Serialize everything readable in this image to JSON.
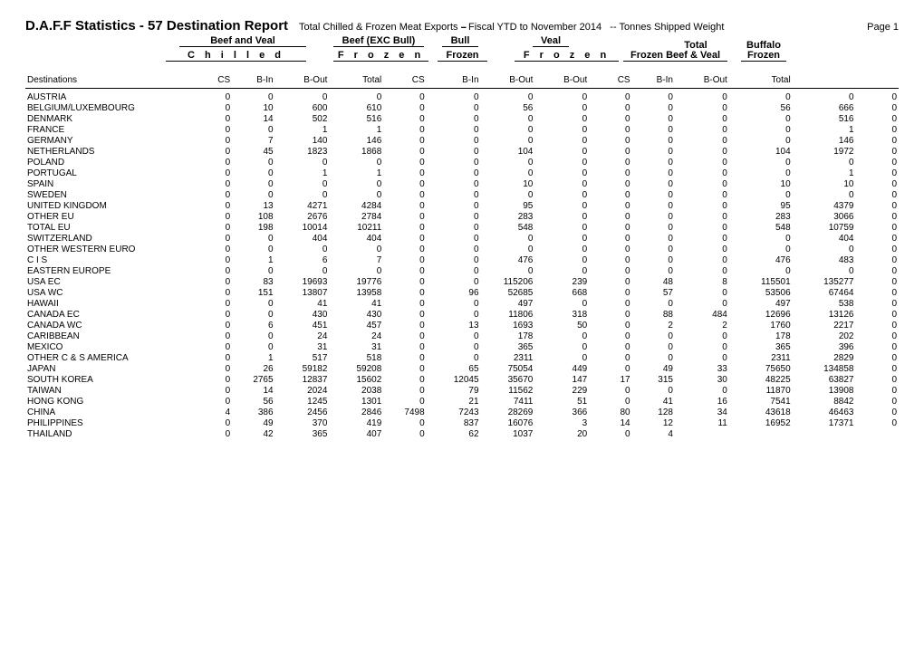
{
  "header": {
    "title": "D.A.F.F Statistics - 57 Destination Report",
    "subtitle_a": "Total Chilled & Frozen Meat Exports",
    "subtitle_b": "Fiscal YTD to November 2014",
    "subtitle_c": "Tonnes Shipped Weight",
    "page": "Page 1",
    "grp_beef_veal": "Beef and Veal",
    "grp_beef_exc": "Beef (EXC Bull)",
    "grp_bull": "Bull",
    "grp_veal": "Veal",
    "grp_total": "Total",
    "grp_buffalo": "Buffalo",
    "sub_chilled": "C h i l l e d",
    "sub_frozen": "F r o z e n",
    "sub_frozen2": "Frozen",
    "sub_frozen_bv": "Frozen Beef & Veal",
    "dest_label": "Destinations",
    "col_cs": "CS",
    "col_bin": "B-In",
    "col_bout": "B-Out",
    "col_total": "Total"
  },
  "rows": [
    {
      "d": "AUSTRIA",
      "v": [
        0,
        0,
        0,
        0,
        0,
        0,
        0,
        0,
        0,
        0,
        0,
        0,
        0,
        0
      ]
    },
    {
      "d": "BELGIUM/LUXEMBOURG",
      "v": [
        0,
        10,
        600,
        610,
        0,
        0,
        56,
        0,
        0,
        0,
        0,
        56,
        666,
        0
      ]
    },
    {
      "d": "DENMARK",
      "v": [
        0,
        14,
        502,
        516,
        0,
        0,
        0,
        0,
        0,
        0,
        0,
        0,
        516,
        0
      ]
    },
    {
      "d": "FRANCE",
      "v": [
        0,
        0,
        1,
        1,
        0,
        0,
        0,
        0,
        0,
        0,
        0,
        0,
        1,
        0
      ]
    },
    {
      "d": "GERMANY",
      "v": [
        0,
        7,
        140,
        146,
        0,
        0,
        0,
        0,
        0,
        0,
        0,
        0,
        146,
        0
      ]
    },
    {
      "d": "NETHERLANDS",
      "v": [
        0,
        45,
        1823,
        1868,
        0,
        0,
        104,
        0,
        0,
        0,
        0,
        104,
        1972,
        0
      ]
    },
    {
      "d": "POLAND",
      "v": [
        0,
        0,
        0,
        0,
        0,
        0,
        0,
        0,
        0,
        0,
        0,
        0,
        0,
        0
      ]
    },
    {
      "d": "PORTUGAL",
      "v": [
        0,
        0,
        1,
        1,
        0,
        0,
        0,
        0,
        0,
        0,
        0,
        0,
        1,
        0
      ]
    },
    {
      "d": "SPAIN",
      "v": [
        0,
        0,
        0,
        0,
        0,
        0,
        10,
        0,
        0,
        0,
        0,
        10,
        10,
        0
      ]
    },
    {
      "d": "SWEDEN",
      "v": [
        0,
        0,
        0,
        0,
        0,
        0,
        0,
        0,
        0,
        0,
        0,
        0,
        0,
        0
      ]
    },
    {
      "d": "UNITED KINGDOM",
      "v": [
        0,
        13,
        4271,
        4284,
        0,
        0,
        95,
        0,
        0,
        0,
        0,
        95,
        4379,
        0
      ]
    },
    {
      "d": "OTHER EU",
      "v": [
        0,
        108,
        2676,
        2784,
        0,
        0,
        283,
        0,
        0,
        0,
        0,
        283,
        3066,
        0
      ]
    },
    {
      "d": "TOTAL EU",
      "v": [
        0,
        198,
        10014,
        10211,
        0,
        0,
        548,
        0,
        0,
        0,
        0,
        548,
        10759,
        0
      ]
    },
    {
      "d": "SWITZERLAND",
      "v": [
        0,
        0,
        404,
        404,
        0,
        0,
        0,
        0,
        0,
        0,
        0,
        0,
        404,
        0
      ]
    },
    {
      "d": "OTHER WESTERN EURO",
      "v": [
        0,
        0,
        0,
        0,
        0,
        0,
        0,
        0,
        0,
        0,
        0,
        0,
        0,
        0
      ]
    },
    {
      "d": "C I S",
      "v": [
        0,
        1,
        6,
        7,
        0,
        0,
        476,
        0,
        0,
        0,
        0,
        476,
        483,
        0
      ]
    },
    {
      "d": "EASTERN EUROPE",
      "v": [
        0,
        0,
        0,
        0,
        0,
        0,
        0,
        0,
        0,
        0,
        0,
        0,
        0,
        0
      ]
    },
    {
      "d": "USA EC",
      "v": [
        0,
        83,
        19693,
        19776,
        0,
        0,
        115206,
        239,
        0,
        48,
        8,
        115501,
        135277,
        0
      ]
    },
    {
      "d": "USA WC",
      "v": [
        0,
        151,
        13807,
        13958,
        0,
        96,
        52685,
        668,
        0,
        57,
        0,
        53506,
        67464,
        0
      ]
    },
    {
      "d": "HAWAII",
      "v": [
        0,
        0,
        41,
        41,
        0,
        0,
        497,
        0,
        0,
        0,
        0,
        497,
        538,
        0
      ]
    },
    {
      "d": "CANADA EC",
      "v": [
        0,
        0,
        430,
        430,
        0,
        0,
        11806,
        318,
        0,
        88,
        484,
        12696,
        13126,
        0
      ]
    },
    {
      "d": "CANADA WC",
      "v": [
        0,
        6,
        451,
        457,
        0,
        13,
        1693,
        50,
        0,
        2,
        2,
        1760,
        2217,
        0
      ]
    },
    {
      "d": "CARIBBEAN",
      "v": [
        0,
        0,
        24,
        24,
        0,
        0,
        178,
        0,
        0,
        0,
        0,
        178,
        202,
        0
      ]
    },
    {
      "d": "MEXICO",
      "v": [
        0,
        0,
        31,
        31,
        0,
        0,
        365,
        0,
        0,
        0,
        0,
        365,
        396,
        0
      ]
    },
    {
      "d": "OTHER C & S AMERICA",
      "v": [
        0,
        1,
        517,
        518,
        0,
        0,
        2311,
        0,
        0,
        0,
        0,
        2311,
        2829,
        0
      ]
    },
    {
      "d": "JAPAN",
      "v": [
        0,
        26,
        59182,
        59208,
        0,
        65,
        75054,
        449,
        0,
        49,
        33,
        75650,
        134858,
        0
      ]
    },
    {
      "d": "SOUTH KOREA",
      "v": [
        0,
        2765,
        12837,
        15602,
        0,
        12045,
        35670,
        147,
        17,
        315,
        30,
        48225,
        63827,
        0
      ]
    },
    {
      "d": "TAIWAN",
      "v": [
        0,
        14,
        2024,
        2038,
        0,
        79,
        11562,
        229,
        0,
        0,
        0,
        11870,
        13908,
        0
      ]
    },
    {
      "d": "HONG KONG",
      "v": [
        0,
        56,
        1245,
        1301,
        0,
        21,
        7411,
        51,
        0,
        41,
        16,
        7541,
        8842,
        0
      ]
    },
    {
      "d": "CHINA",
      "v": [
        4,
        386,
        2456,
        2846,
        7498,
        7243,
        28269,
        366,
        80,
        128,
        34,
        43618,
        46463,
        0
      ]
    },
    {
      "d": "PHILIPPINES",
      "v": [
        0,
        49,
        370,
        419,
        0,
        837,
        16076,
        3,
        14,
        12,
        11,
        16952,
        17371,
        0
      ]
    },
    {
      "d": "THAILAND",
      "v": [
        0,
        42,
        365,
        407,
        0,
        62,
        1037,
        20,
        0,
        4,
        "",
        "",
        "",
        ""
      ]
    }
  ]
}
